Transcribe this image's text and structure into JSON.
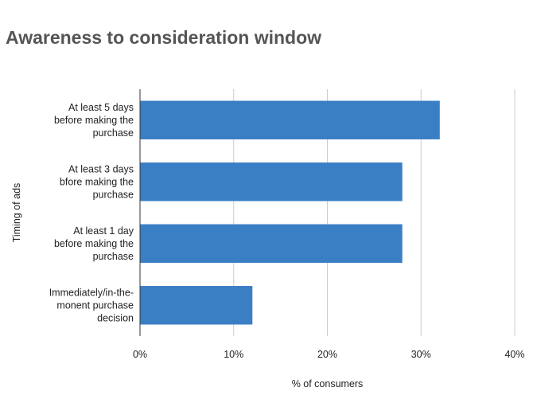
{
  "chart_data": {
    "type": "bar",
    "orientation": "horizontal",
    "title": "Awareness to consideration window",
    "xlabel": "% of consumers",
    "ylabel": "Timing of ads",
    "categories": [
      [
        "At least 5 days",
        "before making the",
        "purchase"
      ],
      [
        "At least 3 days",
        "bfore making the",
        "purchase"
      ],
      [
        "At least 1 day",
        "before making the",
        "purchase"
      ],
      [
        "Immediately/in-the-",
        "monent purchase",
        "decision"
      ]
    ],
    "values": [
      32,
      28,
      28,
      12
    ],
    "xlim": [
      0,
      40
    ],
    "xticks": [
      0,
      10,
      20,
      30,
      40
    ],
    "xtick_labels": [
      "0%",
      "10%",
      "20%",
      "30%",
      "40%"
    ],
    "grid": true,
    "legend": "none",
    "colors": {
      "bar": "#3a7fc4",
      "grid": "#cccccc",
      "axis": "#333333",
      "title": "#555555"
    }
  }
}
